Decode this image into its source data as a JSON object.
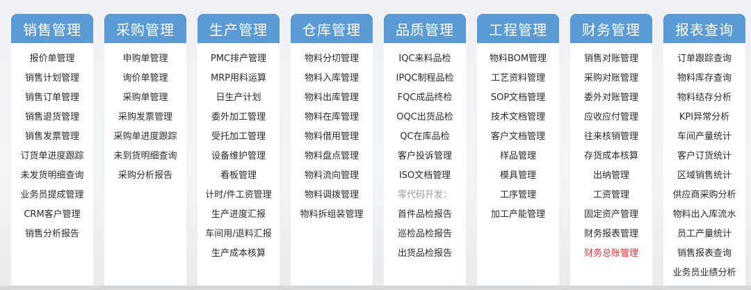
{
  "accent_color": "#5b9bd5",
  "highlight_color": "#e0393e",
  "columns": [
    {
      "title": "销售管理",
      "items": [
        {
          "label": "报价单管理"
        },
        {
          "label": "销售计划管理"
        },
        {
          "label": "销售订单管理"
        },
        {
          "label": "销售退货管理"
        },
        {
          "label": "销售发票管理"
        },
        {
          "label": "订货单进度跟踪"
        },
        {
          "label": "未发货明细查询"
        },
        {
          "label": "业务员提成管理"
        },
        {
          "label": "CRM客户管理"
        },
        {
          "label": "销售分析报告"
        }
      ]
    },
    {
      "title": "采购管理",
      "items": [
        {
          "label": "申购单管理"
        },
        {
          "label": "询价单管理"
        },
        {
          "label": "采购单管理"
        },
        {
          "label": "采购发票管理"
        },
        {
          "label": "采购单进度跟踪"
        },
        {
          "label": "未到货明细查询"
        },
        {
          "label": "采购分析报告"
        }
      ]
    },
    {
      "title": "生产管理",
      "items": [
        {
          "label": "PMC排产管理"
        },
        {
          "label": "MRP用料运算"
        },
        {
          "label": "日生产计划"
        },
        {
          "label": "委外加工管理"
        },
        {
          "label": "受托加工管理"
        },
        {
          "label": "设备维护管理"
        },
        {
          "label": "看板管理"
        },
        {
          "label": "计时/件工资管理"
        },
        {
          "label": "生产进度汇报"
        },
        {
          "label": "车间用/退料汇报"
        },
        {
          "label": "生产成本核算"
        }
      ]
    },
    {
      "title": "仓库管理",
      "items": [
        {
          "label": "物料分切管理"
        },
        {
          "label": "物料入库管理"
        },
        {
          "label": "物料出库管理"
        },
        {
          "label": "物料在库管理"
        },
        {
          "label": "物料借用管理"
        },
        {
          "label": "物料盘点管理"
        },
        {
          "label": "物料流向管理"
        },
        {
          "label": "物料调拨管理"
        },
        {
          "label": "物料拆组装管理"
        }
      ]
    },
    {
      "title": "品质管理",
      "items": [
        {
          "label": "IQC来料品检"
        },
        {
          "label": "IPQC制程品检"
        },
        {
          "label": "FQC成品终检"
        },
        {
          "label": "OQC出货品检"
        },
        {
          "label": "QC在库品检"
        },
        {
          "label": "客户投诉管理"
        },
        {
          "label": "ISO文档管理"
        },
        {
          "label": "零代码开发：",
          "style": "label"
        },
        {
          "label": "首件品检报告"
        },
        {
          "label": "巡检品检报告"
        },
        {
          "label": "出货品检报告"
        }
      ]
    },
    {
      "title": "工程管理",
      "items": [
        {
          "label": "物料BOM管理"
        },
        {
          "label": "工艺资料管理"
        },
        {
          "label": "SOP文档管理"
        },
        {
          "label": "技术文档管理"
        },
        {
          "label": "客户文档管理"
        },
        {
          "label": "样品管理"
        },
        {
          "label": "模具管理"
        },
        {
          "label": "工序管理"
        },
        {
          "label": "加工产能管理"
        }
      ]
    },
    {
      "title": "财务管理",
      "items": [
        {
          "label": "销售对账管理"
        },
        {
          "label": "采购对账管理"
        },
        {
          "label": "委外对账管理"
        },
        {
          "label": "应收应付管理"
        },
        {
          "label": "往来核销管理"
        },
        {
          "label": "存货成本核算"
        },
        {
          "label": "出纳管理"
        },
        {
          "label": "工资管理"
        },
        {
          "label": "固定资产管理"
        },
        {
          "label": "财务报表管理"
        },
        {
          "label": "财务总账管理",
          "style": "red"
        }
      ]
    },
    {
      "title": "报表查询",
      "items": [
        {
          "label": "订单跟踪查询"
        },
        {
          "label": "物料库存查询"
        },
        {
          "label": "物料结存分析"
        },
        {
          "label": "KPI异常分析"
        },
        {
          "label": "车间产量统计"
        },
        {
          "label": "客户订货统计"
        },
        {
          "label": "区域销售统计"
        },
        {
          "label": "供应商采购分析"
        },
        {
          "label": "物料出入库流水"
        },
        {
          "label": "员工产量统计"
        },
        {
          "label": "销售报表查询"
        },
        {
          "label": "业务员业绩分析"
        }
      ]
    }
  ]
}
